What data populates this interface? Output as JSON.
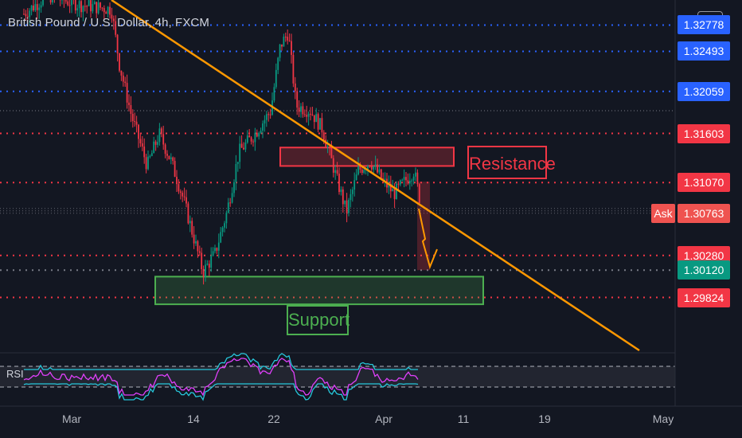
{
  "header": {
    "title": "British Pound / U.S. Dollar, 4h, FXCM",
    "currency_button": "USD"
  },
  "price_scale": {
    "labels": [
      {
        "text": "1.32778",
        "color": "#2962ff"
      },
      {
        "text": "1.32493",
        "color": "#2962ff"
      },
      {
        "text": "1.32059",
        "color": "#2962ff"
      },
      {
        "text": "1.31603",
        "color": "#f23645"
      },
      {
        "text": "1.31070",
        "color": "#f23645"
      },
      {
        "text": "1.30280",
        "color": "#f23645"
      },
      {
        "text": "1.30120",
        "color": "#089981"
      },
      {
        "text": "1.29824",
        "color": "#f23645"
      }
    ],
    "ask_label": "Ask",
    "ask_price": "1.30763"
  },
  "annotations": {
    "resistance": "Resistance",
    "support": "Support",
    "rsi_label": "RSI"
  },
  "x_axis": {
    "ticks": [
      "Mar",
      "14",
      "22",
      "Apr",
      "11",
      "19",
      "May"
    ]
  },
  "chart_data": {
    "type": "candlestick",
    "symbol": "British Pound / U.S. Dollar",
    "interval": "4h",
    "source": "FXCM",
    "horizontal_levels": [
      1.32778,
      1.32493,
      1.32059,
      1.31603,
      1.3107,
      1.30763,
      1.3028,
      1.3012,
      1.29824
    ],
    "resistance_zone": [
      1.3125,
      1.3145
    ],
    "support_zone": [
      1.2975,
      1.3005
    ],
    "trendline": {
      "from": [
        1.3305,
        "early Mar"
      ],
      "to": [
        1.2925,
        "late Apr"
      ]
    },
    "last_price": 1.3012,
    "rsi_bands": [
      70,
      30
    ]
  },
  "colors": {
    "background": "#131722",
    "up": "#089981",
    "down": "#f23645",
    "trendline": "#ff9800",
    "blue_level": "#2962ff",
    "red_level": "#f23645",
    "support": "#4caf50",
    "rsi_line": "#e040fb",
    "rsi_band": "#26c6da"
  }
}
